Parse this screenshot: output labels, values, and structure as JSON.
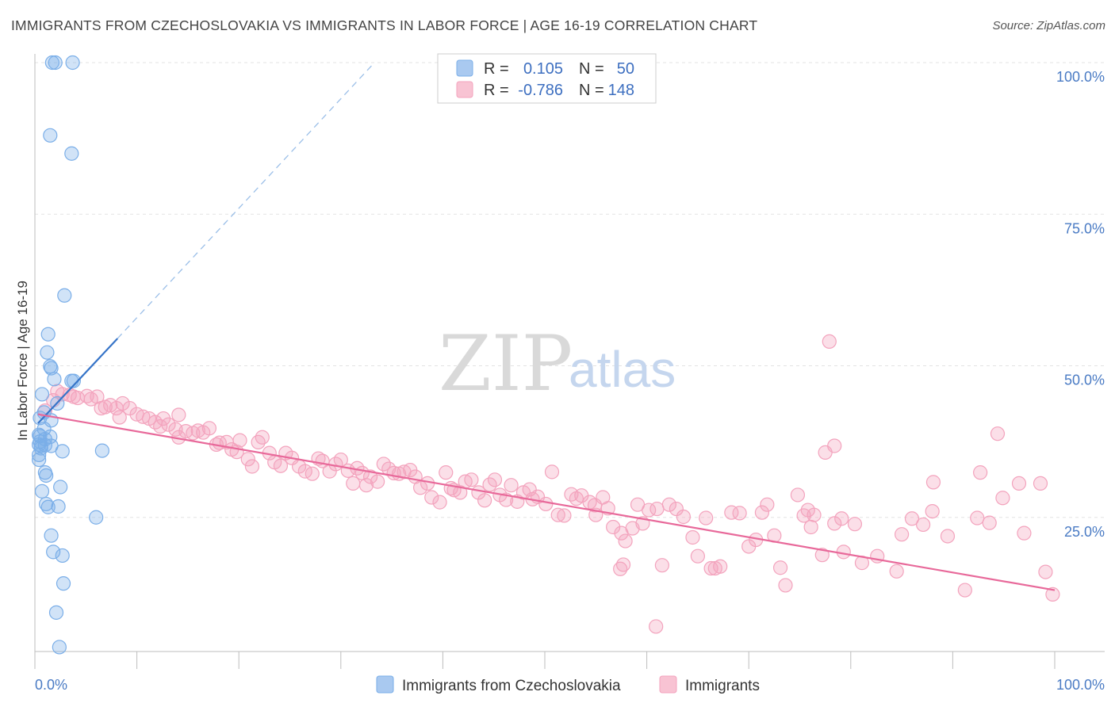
{
  "title": "IMMIGRANTS FROM CZECHOSLOVAKIA VS IMMIGRANTS IN LABOR FORCE | AGE 16-19 CORRELATION CHART",
  "source": "Source: ZipAtlas.com",
  "watermark": {
    "part1": "ZIP",
    "part2": "atlas"
  },
  "legend": {
    "rows": [
      {
        "r_label": "R =",
        "r_value": "0.105",
        "n_label": "N =",
        "n_value": "50"
      },
      {
        "r_label": "R =",
        "r_value": "-0.786",
        "n_label": "N =",
        "n_value": "148"
      }
    ]
  },
  "chart_data": {
    "type": "scatter",
    "ylabel": "In Labor Force | Age 16-19",
    "xlim": [
      0,
      100
    ],
    "ylim": [
      0,
      105
    ],
    "y_ticks": [
      {
        "value": 25,
        "label": "25.0%"
      },
      {
        "value": 50,
        "label": "50.0%"
      },
      {
        "value": 75,
        "label": "75.0%"
      },
      {
        "value": 100,
        "label": "100.0%"
      }
    ],
    "x_tick_labels": {
      "left": "0.0%",
      "right": "100.0%"
    },
    "grid": true,
    "colors": {
      "series1": "#7aaee8",
      "series1_line": "#3674c8",
      "series2": "#f3a3bd",
      "series2_line": "#e8699a"
    },
    "series": [
      {
        "name": "Immigrants from Czechoslovakia",
        "trend": {
          "solid": [
            [
              0.3,
              40.5
            ],
            [
              8.1,
              54.5
            ]
          ],
          "dashed": [
            [
              8.1,
              54.5
            ],
            [
              33.3,
              100
            ]
          ]
        },
        "points": [
          [
            1.7,
            100
          ],
          [
            2.0,
            100
          ],
          [
            3.7,
            100
          ],
          [
            1.5,
            88
          ],
          [
            3.6,
            85
          ],
          [
            2.9,
            61.6
          ],
          [
            1.3,
            55.2
          ],
          [
            1.2,
            52.2
          ],
          [
            1.5,
            49.9
          ],
          [
            1.6,
            49.6
          ],
          [
            1.9,
            47.8
          ],
          [
            3.6,
            47.5
          ],
          [
            3.8,
            47.5
          ],
          [
            0.7,
            45.3
          ],
          [
            2.2,
            43.8
          ],
          [
            0.9,
            42.3
          ],
          [
            0.5,
            41.4
          ],
          [
            1.6,
            41.0
          ],
          [
            0.9,
            39.6
          ],
          [
            0.4,
            38.6
          ],
          [
            0.5,
            38.4
          ],
          [
            1.5,
            38.3
          ],
          [
            1.0,
            37.9
          ],
          [
            0.5,
            37.5
          ],
          [
            0.4,
            37.0
          ],
          [
            0.6,
            36.8
          ],
          [
            1.0,
            36.9
          ],
          [
            1.6,
            36.8
          ],
          [
            0.6,
            36.4
          ],
          [
            2.7,
            35.9
          ],
          [
            6.6,
            36.0
          ],
          [
            0.4,
            35.3
          ],
          [
            0.4,
            34.5
          ],
          [
            1.0,
            32.4
          ],
          [
            1.1,
            31.9
          ],
          [
            2.5,
            30.0
          ],
          [
            0.7,
            29.3
          ],
          [
            1.1,
            27.2
          ],
          [
            1.3,
            26.7
          ],
          [
            2.3,
            26.8
          ],
          [
            6.0,
            25.0
          ],
          [
            1.6,
            22.0
          ],
          [
            1.8,
            19.3
          ],
          [
            2.7,
            18.7
          ],
          [
            2.8,
            14.1
          ],
          [
            2.1,
            9.3
          ],
          [
            2.4,
            3.6
          ]
        ]
      },
      {
        "name": "Immigrants",
        "trend": {
          "solid": [
            [
              0.3,
              42.0
            ],
            [
              100,
              13.0
            ]
          ]
        },
        "points": [
          [
            1.0,
            42.6
          ],
          [
            1.8,
            44.3
          ],
          [
            2.2,
            45.8
          ],
          [
            2.7,
            45.3
          ],
          [
            3.4,
            45.2
          ],
          [
            3.8,
            44.9
          ],
          [
            4.2,
            44.7
          ],
          [
            5.1,
            45.0
          ],
          [
            5.5,
            44.5
          ],
          [
            6.1,
            44.9
          ],
          [
            6.5,
            43.0
          ],
          [
            6.9,
            43.2
          ],
          [
            7.4,
            43.5
          ],
          [
            8.0,
            43.0
          ],
          [
            8.3,
            41.5
          ],
          [
            8.6,
            43.8
          ],
          [
            9.3,
            43.0
          ],
          [
            10.0,
            42.0
          ],
          [
            10.6,
            41.6
          ],
          [
            11.2,
            41.3
          ],
          [
            11.8,
            40.7
          ],
          [
            12.3,
            40.0
          ],
          [
            12.6,
            41.3
          ],
          [
            13.1,
            40.3
          ],
          [
            13.8,
            39.5
          ],
          [
            14.1,
            38.2
          ],
          [
            14.1,
            41.9
          ],
          [
            14.8,
            39.2
          ],
          [
            15.5,
            38.9
          ],
          [
            16.0,
            39.3
          ],
          [
            16.5,
            39.0
          ],
          [
            17.1,
            39.7
          ],
          [
            17.8,
            37.0
          ],
          [
            18.1,
            37.3
          ],
          [
            18.8,
            37.4
          ],
          [
            19.3,
            36.2
          ],
          [
            19.8,
            35.8
          ],
          [
            20.1,
            37.7
          ],
          [
            20.9,
            34.6
          ],
          [
            21.3,
            33.4
          ],
          [
            21.9,
            37.4
          ],
          [
            22.3,
            38.2
          ],
          [
            23.0,
            35.6
          ],
          [
            23.5,
            34.1
          ],
          [
            24.1,
            33.5
          ],
          [
            24.6,
            35.6
          ],
          [
            25.2,
            34.8
          ],
          [
            25.9,
            33.4
          ],
          [
            26.5,
            32.6
          ],
          [
            27.2,
            32.2
          ],
          [
            27.8,
            34.7
          ],
          [
            28.2,
            34.3
          ],
          [
            28.9,
            32.6
          ],
          [
            29.5,
            33.8
          ],
          [
            30.0,
            34.5
          ],
          [
            30.7,
            32.7
          ],
          [
            31.2,
            30.6
          ],
          [
            31.6,
            33.1
          ],
          [
            32.1,
            32.3
          ],
          [
            32.5,
            30.3
          ],
          [
            32.9,
            31.7
          ],
          [
            33.6,
            30.9
          ],
          [
            34.2,
            33.8
          ],
          [
            34.7,
            33.0
          ],
          [
            35.2,
            32.3
          ],
          [
            35.7,
            32.2
          ],
          [
            36.2,
            32.5
          ],
          [
            36.8,
            32.8
          ],
          [
            37.3,
            31.7
          ],
          [
            37.8,
            29.9
          ],
          [
            38.5,
            30.6
          ],
          [
            38.9,
            28.3
          ],
          [
            39.7,
            27.5
          ],
          [
            40.3,
            32.4
          ],
          [
            40.8,
            29.8
          ],
          [
            41.1,
            29.5
          ],
          [
            41.7,
            29.1
          ],
          [
            42.2,
            30.9
          ],
          [
            42.8,
            31.2
          ],
          [
            43.5,
            29.1
          ],
          [
            44.1,
            27.8
          ],
          [
            44.6,
            30.4
          ],
          [
            45.1,
            31.2
          ],
          [
            45.6,
            28.7
          ],
          [
            46.2,
            27.9
          ],
          [
            46.7,
            30.3
          ],
          [
            47.3,
            27.6
          ],
          [
            47.9,
            29.1
          ],
          [
            48.5,
            29.6
          ],
          [
            48.8,
            28.0
          ],
          [
            49.3,
            28.4
          ],
          [
            50.1,
            27.2
          ],
          [
            50.7,
            32.5
          ],
          [
            51.3,
            25.4
          ],
          [
            51.9,
            25.3
          ],
          [
            52.6,
            28.8
          ],
          [
            53.1,
            28.1
          ],
          [
            53.6,
            28.6
          ],
          [
            54.4,
            27.5
          ],
          [
            54.9,
            27.0
          ],
          [
            55.7,
            28.3
          ],
          [
            56.2,
            26.5
          ],
          [
            56.7,
            23.4
          ],
          [
            57.5,
            22.4
          ],
          [
            57.9,
            21.1
          ],
          [
            58.6,
            23.2
          ],
          [
            59.1,
            27.1
          ],
          [
            59.6,
            24.0
          ],
          [
            60.2,
            26.2
          ],
          [
            61.0,
            26.4
          ],
          [
            61.5,
            17.1
          ],
          [
            62.2,
            27.1
          ],
          [
            62.9,
            26.4
          ],
          [
            63.6,
            25.1
          ],
          [
            64.5,
            21.7
          ],
          [
            65.0,
            18.6
          ],
          [
            65.8,
            24.9
          ],
          [
            66.3,
            16.6
          ],
          [
            66.7,
            16.6
          ],
          [
            67.2,
            16.9
          ],
          [
            68.3,
            25.8
          ],
          [
            69.1,
            25.7
          ],
          [
            70.0,
            20.2
          ],
          [
            70.7,
            21.3
          ],
          [
            71.3,
            25.8
          ],
          [
            71.8,
            27.1
          ],
          [
            72.5,
            22.0
          ],
          [
            73.1,
            16.7
          ],
          [
            73.6,
            13.8
          ],
          [
            74.8,
            28.7
          ],
          [
            75.4,
            25.3
          ],
          [
            76.1,
            23.4
          ],
          [
            77.2,
            18.8
          ],
          [
            78.4,
            24.0
          ],
          [
            79.3,
            19.3
          ],
          [
            80.4,
            23.9
          ],
          [
            81.1,
            17.5
          ],
          [
            82.6,
            18.6
          ],
          [
            84.5,
            16.1
          ],
          [
            85.0,
            22.2
          ],
          [
            86.0,
            24.8
          ],
          [
            87.1,
            23.8
          ],
          [
            88.0,
            26.0
          ],
          [
            89.5,
            21.9
          ],
          [
            91.2,
            13.0
          ],
          [
            92.4,
            24.9
          ],
          [
            93.6,
            24.1
          ],
          [
            94.9,
            28.2
          ],
          [
            97.0,
            22.4
          ],
          [
            98.6,
            30.6
          ],
          [
            99.1,
            16.0
          ],
          [
            99.8,
            12.3
          ],
          [
            75.8,
            26.2
          ],
          [
            79.1,
            24.8
          ],
          [
            94.4,
            38.8
          ],
          [
            96.5,
            30.6
          ],
          [
            92.7,
            32.4
          ],
          [
            77.5,
            35.7
          ],
          [
            78.4,
            36.8
          ],
          [
            76.4,
            25.4
          ],
          [
            88.1,
            30.8
          ],
          [
            77.9,
            54.0
          ],
          [
            60.9,
            7.0
          ],
          [
            57.7,
            17.2
          ],
          [
            57.4,
            16.5
          ],
          [
            55.0,
            25.4
          ]
        ]
      }
    ]
  }
}
